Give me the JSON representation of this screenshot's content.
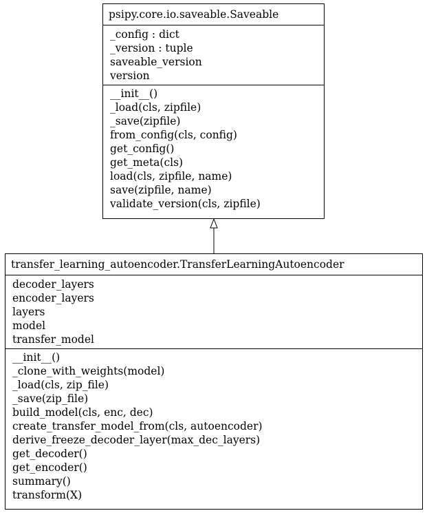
{
  "diagram": {
    "classes": [
      {
        "id": "saveable",
        "name": "psipy.core.io.saveable.Saveable",
        "attributes": [
          "_config : dict",
          "_version : tuple",
          "saveable_version",
          "version"
        ],
        "methods": [
          "__init__()",
          "_load(cls, zipfile)",
          "_save(zipfile)",
          "from_config(cls, config)",
          "get_config()",
          "get_meta(cls)",
          "load(cls, zipfile, name)",
          "save(zipfile, name)",
          "validate_version(cls, zipfile)"
        ]
      },
      {
        "id": "tla",
        "name": "transfer_learning_autoencoder.TransferLearningAutoencoder",
        "attributes": [
          "decoder_layers",
          "encoder_layers",
          "layers",
          "model",
          "transfer_model"
        ],
        "methods": [
          "__init__()",
          "_clone_with_weights(model)",
          "_load(cls, zip_file)",
          "_save(zip_file)",
          "build_model(cls, enc, dec)",
          "create_transfer_model_from(cls, autoencoder)",
          "derive_freeze_decoder_layer(max_dec_layers)",
          "get_decoder()",
          "get_encoder()",
          "summary()",
          "transform(X)"
        ]
      }
    ],
    "relations": [
      {
        "type": "inheritance",
        "from": "tla",
        "to": "saveable"
      }
    ],
    "colors": {
      "line": "#000000",
      "background": "#ffffff",
      "arrow_fill": "#ffffff"
    }
  }
}
